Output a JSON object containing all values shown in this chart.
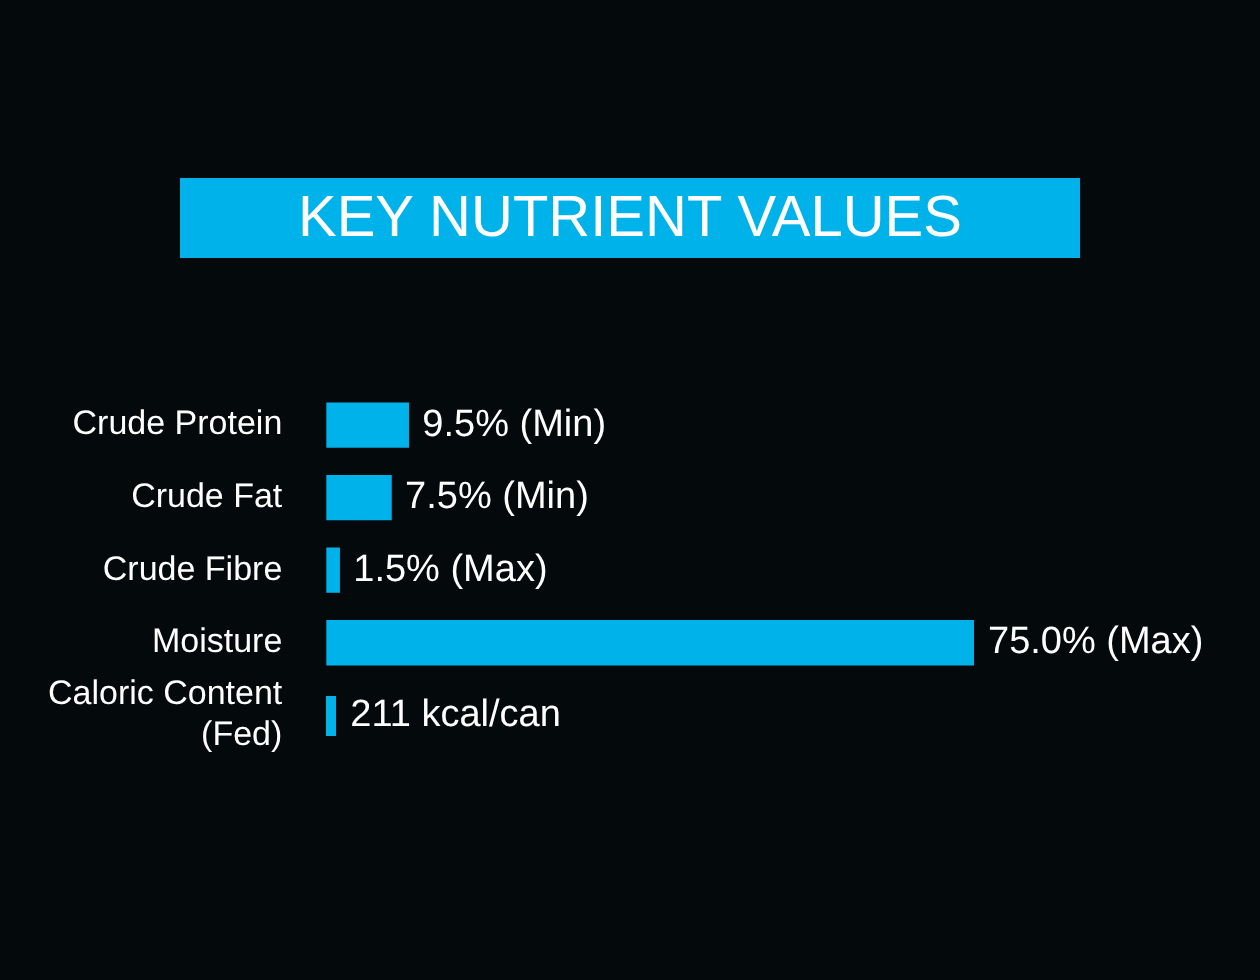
{
  "chart_data": {
    "type": "bar",
    "orientation": "horizontal",
    "title": "KEY NUTRIENT VALUES",
    "categories": [
      "Crude Protein",
      "Crude Fat",
      "Crude Fibre",
      "Moisture",
      "Caloric Content (Fed)"
    ],
    "values": [
      9.5,
      7.5,
      1.5,
      75.0,
      null
    ],
    "value_labels": [
      "9.5% (Min)",
      "7.5% (Min)",
      "1.5% (Max)",
      "75.0% (Max)",
      "211 kcal/can"
    ],
    "color": "#00b2ea",
    "legend": false,
    "tick_labels": "y"
  }
}
